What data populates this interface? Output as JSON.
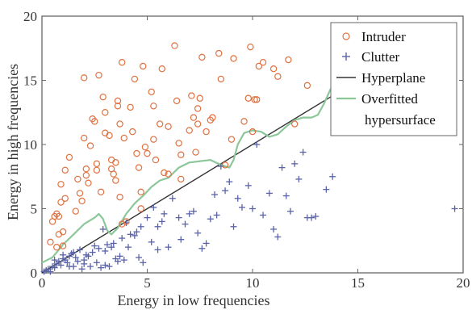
{
  "chart_data": {
    "type": "scatter",
    "xlabel": "Energy in low frequencies",
    "ylabel": "Energy in high frequencies",
    "xlim": [
      0,
      20
    ],
    "ylim": [
      0,
      20
    ],
    "xticks": [
      "0",
      "5",
      "10",
      "15",
      "20"
    ],
    "yticks": [
      "0",
      "5",
      "10",
      "15",
      "20"
    ],
    "grid": false,
    "legend_position": "top-right",
    "colors": {
      "intruder": "#e0703f",
      "clutter": "#5a63a8",
      "hyperplane": "#333333",
      "hypersurface": "#8cc79a"
    },
    "legend": [
      {
        "key": "intruder",
        "label": "Intruder",
        "marker": "circle"
      },
      {
        "key": "clutter",
        "label": "Clutter",
        "marker": "plus"
      },
      {
        "key": "hyperplane",
        "label": "Hyperplane",
        "marker": "line"
      },
      {
        "key": "hypersurface",
        "label": "Overfitted",
        "label2": "hypersurface",
        "marker": "line"
      }
    ],
    "series": [
      {
        "name": "Intruder",
        "marker": "circle",
        "points": [
          [
            0.4,
            2.4
          ],
          [
            0.5,
            4.0
          ],
          [
            0.6,
            4.4
          ],
          [
            0.7,
            4.6
          ],
          [
            0.8,
            3.0
          ],
          [
            0.8,
            4.4
          ],
          [
            0.9,
            5.5
          ],
          [
            1.0,
            2.1
          ],
          [
            0.7,
            2.0
          ],
          [
            1.1,
            5.8
          ],
          [
            0.9,
            6.9
          ],
          [
            1.1,
            8.0
          ],
          [
            1.3,
            9.0
          ],
          [
            1.0,
            3.2
          ],
          [
            1.6,
            4.8
          ],
          [
            1.7,
            7.3
          ],
          [
            1.8,
            6.2
          ],
          [
            1.9,
            5.6
          ],
          [
            2.0,
            10.5
          ],
          [
            2.0,
            15.2
          ],
          [
            2.1,
            8.1
          ],
          [
            2.1,
            7.6
          ],
          [
            2.2,
            7.0
          ],
          [
            2.3,
            9.9
          ],
          [
            2.4,
            12.0
          ],
          [
            2.5,
            11.8
          ],
          [
            2.6,
            8.5
          ],
          [
            2.6,
            8.0
          ],
          [
            2.7,
            15.4
          ],
          [
            2.8,
            6.3
          ],
          [
            2.9,
            13.7
          ],
          [
            3.0,
            12.5
          ],
          [
            3.0,
            10.9
          ],
          [
            3.2,
            10.7
          ],
          [
            3.3,
            8.8
          ],
          [
            3.3,
            8.1
          ],
          [
            3.4,
            7.7
          ],
          [
            3.5,
            8.6
          ],
          [
            3.5,
            7.2
          ],
          [
            3.6,
            13.4
          ],
          [
            3.6,
            13.0
          ],
          [
            3.7,
            11.6
          ],
          [
            3.7,
            5.9
          ],
          [
            3.8,
            16.4
          ],
          [
            3.8,
            3.8
          ],
          [
            3.9,
            10.5
          ],
          [
            4.0,
            4.0
          ],
          [
            4.2,
            12.9
          ],
          [
            4.3,
            11.0
          ],
          [
            4.4,
            15.1
          ],
          [
            4.5,
            9.3
          ],
          [
            4.6,
            8.2
          ],
          [
            4.7,
            5.0
          ],
          [
            4.7,
            6.3
          ],
          [
            4.8,
            16.1
          ],
          [
            4.9,
            9.8
          ],
          [
            5.0,
            9.3
          ],
          [
            5.2,
            14.1
          ],
          [
            5.3,
            13.0
          ],
          [
            5.3,
            10.4
          ],
          [
            5.4,
            8.8
          ],
          [
            5.6,
            11.6
          ],
          [
            5.7,
            15.9
          ],
          [
            5.8,
            7.8
          ],
          [
            6.0,
            7.7
          ],
          [
            6.0,
            11.4
          ],
          [
            6.3,
            17.7
          ],
          [
            6.4,
            13.4
          ],
          [
            6.5,
            10.1
          ],
          [
            6.6,
            7.3
          ],
          [
            6.6,
            9.2
          ],
          [
            7.0,
            11.1
          ],
          [
            7.1,
            13.8
          ],
          [
            7.2,
            12.1
          ],
          [
            7.3,
            9.4
          ],
          [
            7.4,
            11.6
          ],
          [
            7.4,
            12.8
          ],
          [
            7.5,
            13.6
          ],
          [
            7.6,
            16.8
          ],
          [
            7.8,
            11.0
          ],
          [
            8.0,
            11.9
          ],
          [
            8.1,
            12.1
          ],
          [
            8.4,
            17.1
          ],
          [
            8.5,
            15.1
          ],
          [
            8.7,
            8.4
          ],
          [
            9.1,
            16.7
          ],
          [
            9.6,
            11.8
          ],
          [
            9.8,
            13.6
          ],
          [
            9.9,
            17.6
          ],
          [
            10.1,
            13.5
          ],
          [
            10.2,
            13.5
          ],
          [
            10.3,
            16.1
          ],
          [
            10.5,
            16.4
          ],
          [
            11.0,
            15.9
          ],
          [
            11.2,
            15.3
          ],
          [
            11.7,
            16.6
          ],
          [
            12.0,
            11.6
          ],
          [
            12.6,
            14.6
          ],
          [
            10.0,
            11.0
          ],
          [
            9.0,
            10.4
          ]
        ]
      },
      {
        "name": "Clutter",
        "marker": "plus",
        "points": [
          [
            0.1,
            0.1
          ],
          [
            0.2,
            0.2
          ],
          [
            0.3,
            0.3
          ],
          [
            0.4,
            0.1
          ],
          [
            0.5,
            0.5
          ],
          [
            0.6,
            0.4
          ],
          [
            0.7,
            0.7
          ],
          [
            0.8,
            0.9
          ],
          [
            0.9,
            0.6
          ],
          [
            1.0,
            1.1
          ],
          [
            1.1,
            1.0
          ],
          [
            1.2,
            0.8
          ],
          [
            1.3,
            1.3
          ],
          [
            1.4,
            1.5
          ],
          [
            1.5,
            0.5
          ],
          [
            1.5,
            1.6
          ],
          [
            1.6,
            1.2
          ],
          [
            1.7,
            0.9
          ],
          [
            1.8,
            1.8
          ],
          [
            1.9,
            0.3
          ],
          [
            2.0,
            1.0
          ],
          [
            2.1,
            1.4
          ],
          [
            2.2,
            1.3
          ],
          [
            2.3,
            0.5
          ],
          [
            2.4,
            1.6
          ],
          [
            2.5,
            2.1
          ],
          [
            2.6,
            0.8
          ],
          [
            2.7,
            1.9
          ],
          [
            2.8,
            0.4
          ],
          [
            2.9,
            3.4
          ],
          [
            3.0,
            1.7
          ],
          [
            3.1,
            2.2
          ],
          [
            3.2,
            0.5
          ],
          [
            3.3,
            2.0
          ],
          [
            3.4,
            2.3
          ],
          [
            3.5,
            1.1
          ],
          [
            3.6,
            0.9
          ],
          [
            3.7,
            1.3
          ],
          [
            3.8,
            2.7
          ],
          [
            3.9,
            1.0
          ],
          [
            4.0,
            3.9
          ],
          [
            4.2,
            3.0
          ],
          [
            4.4,
            2.9
          ],
          [
            4.5,
            3.2
          ],
          [
            4.6,
            1.2
          ],
          [
            4.7,
            3.6
          ],
          [
            4.8,
            0.8
          ],
          [
            5.0,
            4.3
          ],
          [
            5.2,
            2.4
          ],
          [
            5.3,
            5.1
          ],
          [
            5.5,
            3.6
          ],
          [
            5.7,
            4.0
          ],
          [
            5.8,
            4.6
          ],
          [
            6.0,
            2.0
          ],
          [
            6.2,
            5.8
          ],
          [
            6.5,
            4.3
          ],
          [
            6.6,
            2.6
          ],
          [
            6.8,
            3.8
          ],
          [
            7.0,
            4.6
          ],
          [
            7.2,
            4.8
          ],
          [
            7.4,
            3.1
          ],
          [
            7.6,
            1.9
          ],
          [
            7.8,
            2.3
          ],
          [
            8.0,
            4.2
          ],
          [
            8.2,
            6.1
          ],
          [
            8.3,
            4.5
          ],
          [
            8.5,
            8.3
          ],
          [
            8.7,
            6.4
          ],
          [
            8.9,
            7.1
          ],
          [
            9.1,
            3.6
          ],
          [
            9.3,
            5.8
          ],
          [
            9.5,
            5.1
          ],
          [
            9.8,
            6.8
          ],
          [
            10.0,
            5.0
          ],
          [
            10.2,
            10.0
          ],
          [
            10.5,
            4.5
          ],
          [
            10.8,
            6.2
          ],
          [
            11.0,
            3.4
          ],
          [
            11.2,
            2.8
          ],
          [
            11.4,
            8.2
          ],
          [
            11.6,
            6.0
          ],
          [
            11.8,
            4.8
          ],
          [
            12.0,
            8.5
          ],
          [
            12.2,
            7.3
          ],
          [
            12.4,
            9.4
          ],
          [
            12.6,
            4.3
          ],
          [
            12.8,
            4.3
          ],
          [
            13.0,
            4.4
          ],
          [
            13.5,
            6.5
          ],
          [
            13.8,
            7.5
          ],
          [
            19.6,
            5.0
          ],
          [
            1.0,
            1.4
          ],
          [
            1.3,
            0.5
          ],
          [
            0.6,
            1.0
          ],
          [
            2.0,
            0.7
          ],
          [
            3.0,
            0.6
          ],
          [
            4.1,
            2.0
          ],
          [
            5.5,
            1.8
          ]
        ]
      },
      {
        "name": "Hyperplane",
        "marker": "line",
        "points": [
          [
            0,
            0
          ],
          [
            13.8,
            13.8
          ]
        ]
      },
      {
        "name": "Overfitted hypersurface",
        "marker": "line",
        "points": [
          [
            0.0,
            0.8
          ],
          [
            0.5,
            1.2
          ],
          [
            1.0,
            2.2
          ],
          [
            1.5,
            3.0
          ],
          [
            2.0,
            3.8
          ],
          [
            2.5,
            4.3
          ],
          [
            2.7,
            4.6
          ],
          [
            2.9,
            4.2
          ],
          [
            3.1,
            3.3
          ],
          [
            3.3,
            3.0
          ],
          [
            3.6,
            3.5
          ],
          [
            4.0,
            4.6
          ],
          [
            4.4,
            5.4
          ],
          [
            4.8,
            6.0
          ],
          [
            5.2,
            6.7
          ],
          [
            5.6,
            7.2
          ],
          [
            6.0,
            7.4
          ],
          [
            6.5,
            8.2
          ],
          [
            7.0,
            8.6
          ],
          [
            7.5,
            8.7
          ],
          [
            8.0,
            8.8
          ],
          [
            8.5,
            8.4
          ],
          [
            8.9,
            8.2
          ],
          [
            9.1,
            8.8
          ],
          [
            9.3,
            10.0
          ],
          [
            9.6,
            10.9
          ],
          [
            10.0,
            11.1
          ],
          [
            10.4,
            11.0
          ],
          [
            10.8,
            10.6
          ],
          [
            11.2,
            10.8
          ],
          [
            11.6,
            11.4
          ],
          [
            12.0,
            11.9
          ],
          [
            12.4,
            12.1
          ],
          [
            12.8,
            12.1
          ],
          [
            13.1,
            12.3
          ],
          [
            13.4,
            13.2
          ],
          [
            13.7,
            14.3
          ],
          [
            13.9,
            14.8
          ]
        ]
      }
    ]
  }
}
